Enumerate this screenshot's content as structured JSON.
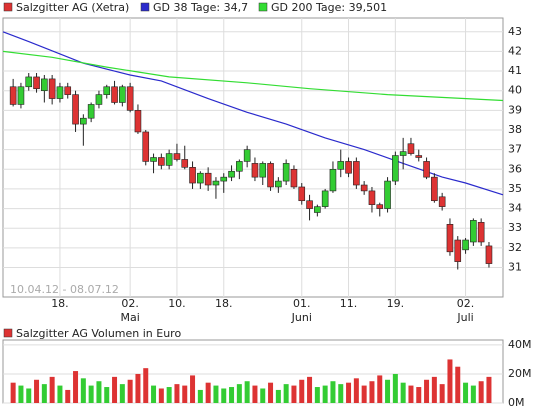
{
  "chart_data": [
    {
      "type": "candlestick",
      "legend": [
        "Salzgitter AG (Xetra)",
        "GD 38 Tage: 34,7",
        "GD 200 Tage: 39,501"
      ],
      "date_range": "10.04.12 - 08.07.12",
      "up_color": "#33cc33",
      "down_color": "#dd3333",
      "open": [
        40.2,
        39.3,
        40.2,
        40.7,
        40.0,
        40.6,
        39.6,
        40.2,
        39.8,
        38.3,
        38.6,
        39.3,
        39.8,
        40.2,
        39.4,
        40.2,
        39.0,
        37.9,
        36.4,
        36.6,
        36.2,
        36.8,
        36.5,
        36.1,
        35.3,
        35.8,
        35.2,
        35.4,
        35.6,
        35.9,
        36.4,
        36.3,
        35.6,
        36.3,
        35.1,
        35.4,
        36.0,
        35.1,
        34.4,
        33.8,
        34.1,
        34.9,
        36.0,
        36.4,
        36.4,
        35.2,
        34.9,
        34.2,
        34.0,
        35.4,
        36.7,
        37.3,
        36.7,
        36.4,
        35.6,
        34.6,
        33.2,
        32.4,
        31.9,
        32.3,
        33.3,
        32.1
      ],
      "high": [
        40.6,
        40.4,
        40.9,
        40.9,
        40.8,
        40.8,
        40.4,
        40.4,
        40.0,
        38.8,
        39.4,
        40.0,
        40.3,
        40.5,
        40.3,
        40.4,
        39.3,
        38.0,
        36.8,
        36.8,
        37.0,
        37.3,
        37.2,
        36.4,
        35.9,
        36.1,
        35.6,
        35.8,
        36.2,
        36.5,
        37.2,
        36.6,
        36.4,
        36.4,
        35.6,
        36.5,
        36.2,
        35.3,
        34.7,
        34.2,
        35.0,
        36.4,
        37.0,
        36.6,
        36.6,
        35.4,
        35.1,
        34.3,
        35.6,
        36.9,
        37.6,
        37.6,
        37.0,
        36.6,
        35.8,
        34.8,
        33.5,
        32.6,
        32.5,
        33.5,
        33.5,
        32.3
      ],
      "low": [
        39.2,
        39.1,
        40.0,
        39.9,
        39.4,
        39.3,
        39.4,
        39.6,
        37.9,
        37.2,
        38.4,
        39.1,
        39.6,
        39.3,
        39.2,
        38.9,
        37.8,
        36.2,
        35.8,
        36.0,
        36.0,
        36.4,
        36.0,
        35.0,
        35.0,
        34.9,
        34.5,
        34.8,
        35.4,
        35.5,
        36.1,
        35.4,
        35.2,
        34.9,
        34.8,
        35.2,
        35.0,
        34.2,
        33.4,
        33.6,
        34.0,
        34.8,
        35.6,
        35.6,
        35.0,
        34.7,
        33.8,
        33.6,
        33.8,
        35.2,
        36.0,
        36.7,
        36.4,
        35.5,
        34.3,
        33.9,
        31.6,
        30.9,
        31.7,
        32.1,
        32.1,
        31.0
      ],
      "close": [
        39.3,
        40.2,
        40.7,
        40.1,
        40.6,
        39.6,
        40.2,
        39.8,
        38.3,
        38.6,
        39.3,
        39.8,
        40.2,
        39.4,
        40.2,
        39.0,
        37.9,
        36.4,
        36.6,
        36.2,
        36.8,
        36.5,
        36.1,
        35.3,
        35.8,
        35.2,
        35.4,
        35.6,
        35.9,
        36.4,
        37.0,
        35.6,
        36.3,
        35.1,
        35.4,
        36.3,
        35.1,
        34.4,
        34.0,
        34.1,
        34.9,
        36.0,
        36.4,
        35.8,
        35.2,
        34.9,
        34.2,
        34.0,
        35.4,
        36.7,
        36.9,
        36.8,
        36.6,
        35.6,
        34.4,
        34.1,
        31.8,
        31.3,
        32.4,
        33.4,
        32.3,
        31.2
      ],
      "series": [
        {
          "name": "GD 38 Tage",
          "color": "#2a2acc",
          "x": [
            -1.3,
            2,
            9,
            15,
            19,
            25,
            30,
            35,
            40,
            45,
            50,
            55,
            58,
            62.8
          ],
          "values": [
            43.0,
            42.5,
            41.4,
            40.8,
            40.5,
            39.6,
            38.9,
            38.3,
            37.6,
            37.0,
            36.3,
            35.6,
            35.3,
            34.7
          ]
        },
        {
          "name": "GD 200 Tage",
          "color": "#33dd33",
          "x": [
            -1.3,
            5,
            12,
            20,
            30,
            38,
            48,
            62.8
          ],
          "values": [
            42.0,
            41.7,
            41.2,
            40.7,
            40.4,
            40.1,
            39.8,
            39.5
          ]
        }
      ],
      "xlim": [
        -1.3,
        62.8
      ],
      "xticks": [
        {
          "value": 6,
          "label": "18."
        },
        {
          "value": 15,
          "label": "02."
        },
        {
          "value": 21,
          "label": "10."
        },
        {
          "value": 27,
          "label": "18."
        },
        {
          "value": 37,
          "label": "01."
        },
        {
          "value": 43,
          "label": "11."
        },
        {
          "value": 49,
          "label": "19."
        },
        {
          "value": 58,
          "label": "02."
        }
      ],
      "month_labels": [
        {
          "value": 15,
          "label": "Mai"
        },
        {
          "value": 37,
          "label": "Juni"
        },
        {
          "value": 58,
          "label": "Juli"
        }
      ],
      "ylim": [
        29.5,
        43.7
      ],
      "yticks": [
        31,
        32,
        33,
        34,
        35,
        36,
        37,
        38,
        39,
        40,
        41,
        42,
        43
      ],
      "grid": true
    },
    {
      "type": "volume",
      "title": "Salzgitter AG Volumen in Euro",
      "values": [
        14,
        12,
        10,
        16,
        13,
        18,
        12,
        9,
        22,
        17,
        12,
        15,
        11,
        18,
        13,
        16,
        20,
        24,
        12,
        10,
        11,
        13,
        12,
        19,
        9,
        14,
        12,
        10,
        11,
        13,
        15,
        12,
        10,
        14,
        9,
        13,
        12,
        16,
        18,
        11,
        12,
        15,
        13,
        14,
        17,
        12,
        15,
        19,
        16,
        20,
        14,
        12,
        11,
        16,
        18,
        13,
        30,
        25,
        14,
        12,
        15,
        18
      ],
      "xlim": [
        -1.3,
        62.8
      ],
      "ylim": [
        0,
        43.4
      ],
      "yticks": [
        {
          "value": 0,
          "label": "0M"
        },
        {
          "value": 20,
          "label": "20M"
        },
        {
          "value": 40,
          "label": "40M"
        }
      ],
      "grid": true
    }
  ]
}
